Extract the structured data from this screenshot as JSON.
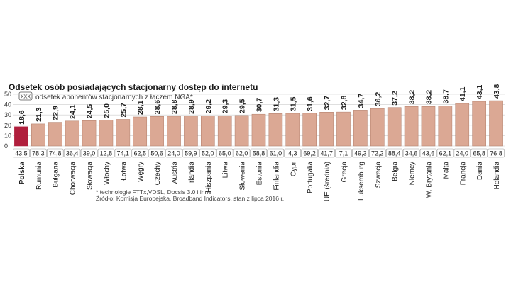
{
  "chart_data": {
    "type": "bar",
    "title": "Odsetek osób posiadających stacjonarny dostęp do internetu",
    "legend": {
      "marker_text": "XXX",
      "label": "odsetek abonentów stacjonarnych z łączem NGA*"
    },
    "yticks": [
      "0",
      "10",
      "20",
      "30",
      "40",
      "50"
    ],
    "ylim": [
      0,
      50
    ],
    "grid": true,
    "highlight_category": "Polska",
    "colors": {
      "bar": "#dba894",
      "bar_stroke": "#b07d69",
      "highlight_bar": "#b01e3c",
      "highlight_label": "#b01e3c",
      "grid": "#cccccc"
    },
    "categories": [
      "Polska",
      "Rumunia",
      "Bułgaria",
      "Chorwacja",
      "Słowacja",
      "Włochy",
      "Łotwa",
      "Węgry",
      "Czechy",
      "Austria",
      "Irlandia",
      "Hiszpania",
      "Litwa",
      "Słowenia",
      "Estonia",
      "Finlandia",
      "Cypr",
      "Portugalia",
      "UE (średnia)",
      "Grecja",
      "Luksemburg",
      "Szwecja",
      "Belgia",
      "Niemcy",
      "W. Brytania",
      "Malta",
      "Francja",
      "Dania",
      "Holandia"
    ],
    "value_labels": [
      "18,6",
      "21,3",
      "22,9",
      "24,1",
      "24,5",
      "25,0",
      "25,7",
      "28,1",
      "28,6",
      "28,8",
      "28,9",
      "29,2",
      "29,3",
      "29,5",
      "30,7",
      "31,3",
      "31,5",
      "31,6",
      "32,7",
      "32,8",
      "34,7",
      "36,2",
      "37,2",
      "38,2",
      "38,2",
      "38,7",
      "41,1",
      "43,1",
      "43,8"
    ],
    "values": [
      18.6,
      21.3,
      22.9,
      24.1,
      24.5,
      25.0,
      25.7,
      28.1,
      28.6,
      28.8,
      28.9,
      29.2,
      29.3,
      29.5,
      30.7,
      31.3,
      31.5,
      31.6,
      32.7,
      32.8,
      34.7,
      36.2,
      37.2,
      38.2,
      38.2,
      38.7,
      41.1,
      43.1,
      43.8
    ],
    "nga_labels": [
      "43,5",
      "78,3",
      "74,8",
      "36,4",
      "39,0",
      "12,8",
      "74,1",
      "62,5",
      "50,6",
      "24,0",
      "59,9",
      "52,0",
      "65,0",
      "62,0",
      "58,8",
      "61,0",
      "4,3",
      "69,2",
      "41,7",
      "7,1",
      "49,3",
      "72,2",
      "88,4",
      "34,6",
      "43,6",
      "62,1",
      "24,0",
      "65,8",
      "76,8"
    ],
    "footnotes": [
      "* technologie FTTx,VDSL, Docsis 3.0 i inne",
      "Źródło: Komisja Europejska, Broadband Indicators, stan z lipca 2016 r."
    ]
  }
}
